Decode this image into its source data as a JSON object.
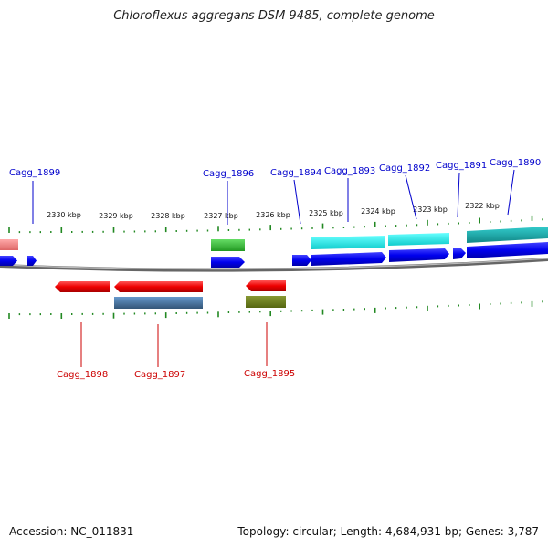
{
  "title": "Chloroflexus aggregans DSM 9485, complete genome",
  "accession": "Accession: NC_011831",
  "summary": "Topology: circular; Length: 4,684,931 bp; Genes: 3,787",
  "ticks": [
    {
      "label": "2330 kbp"
    },
    {
      "label": "2329 kbp"
    },
    {
      "label": "2328 kbp"
    },
    {
      "label": "2327 kbp"
    },
    {
      "label": "2326 kbp"
    },
    {
      "label": "2325 kbp"
    },
    {
      "label": "2324 kbp"
    },
    {
      "label": "2323 kbp"
    },
    {
      "label": "2322 kbp"
    }
  ],
  "genes_forward": [
    {
      "label": "Cagg_1899",
      "color": "#0000cc"
    },
    {
      "label": "Cagg_1896",
      "color": "#0000cc"
    },
    {
      "label": "Cagg_1894",
      "color": "#0000cc"
    },
    {
      "label": "Cagg_1893",
      "color": "#0000cc"
    },
    {
      "label": "Cagg_1892",
      "color": "#0000cc"
    },
    {
      "label": "Cagg_1891",
      "color": "#0000cc"
    },
    {
      "label": "Cagg_1890",
      "color": "#0000cc"
    }
  ],
  "genes_reverse": [
    {
      "label": "Cagg_1898",
      "color": "#cc0000"
    },
    {
      "label": "Cagg_1897",
      "color": "#cc0000"
    },
    {
      "label": "Cagg_1895",
      "color": "#cc0000"
    }
  ],
  "colors": {
    "forward_cds": "#0000ee",
    "reverse_cds": "#ee0000",
    "backbone": "#888888",
    "ticks": "#228822",
    "rna_green": "#33bb33",
    "cyan": "#22dddd",
    "teal": "#11bbbb",
    "steelblue": "#4477aa",
    "olive": "#778822",
    "pink": "#ee8888"
  }
}
